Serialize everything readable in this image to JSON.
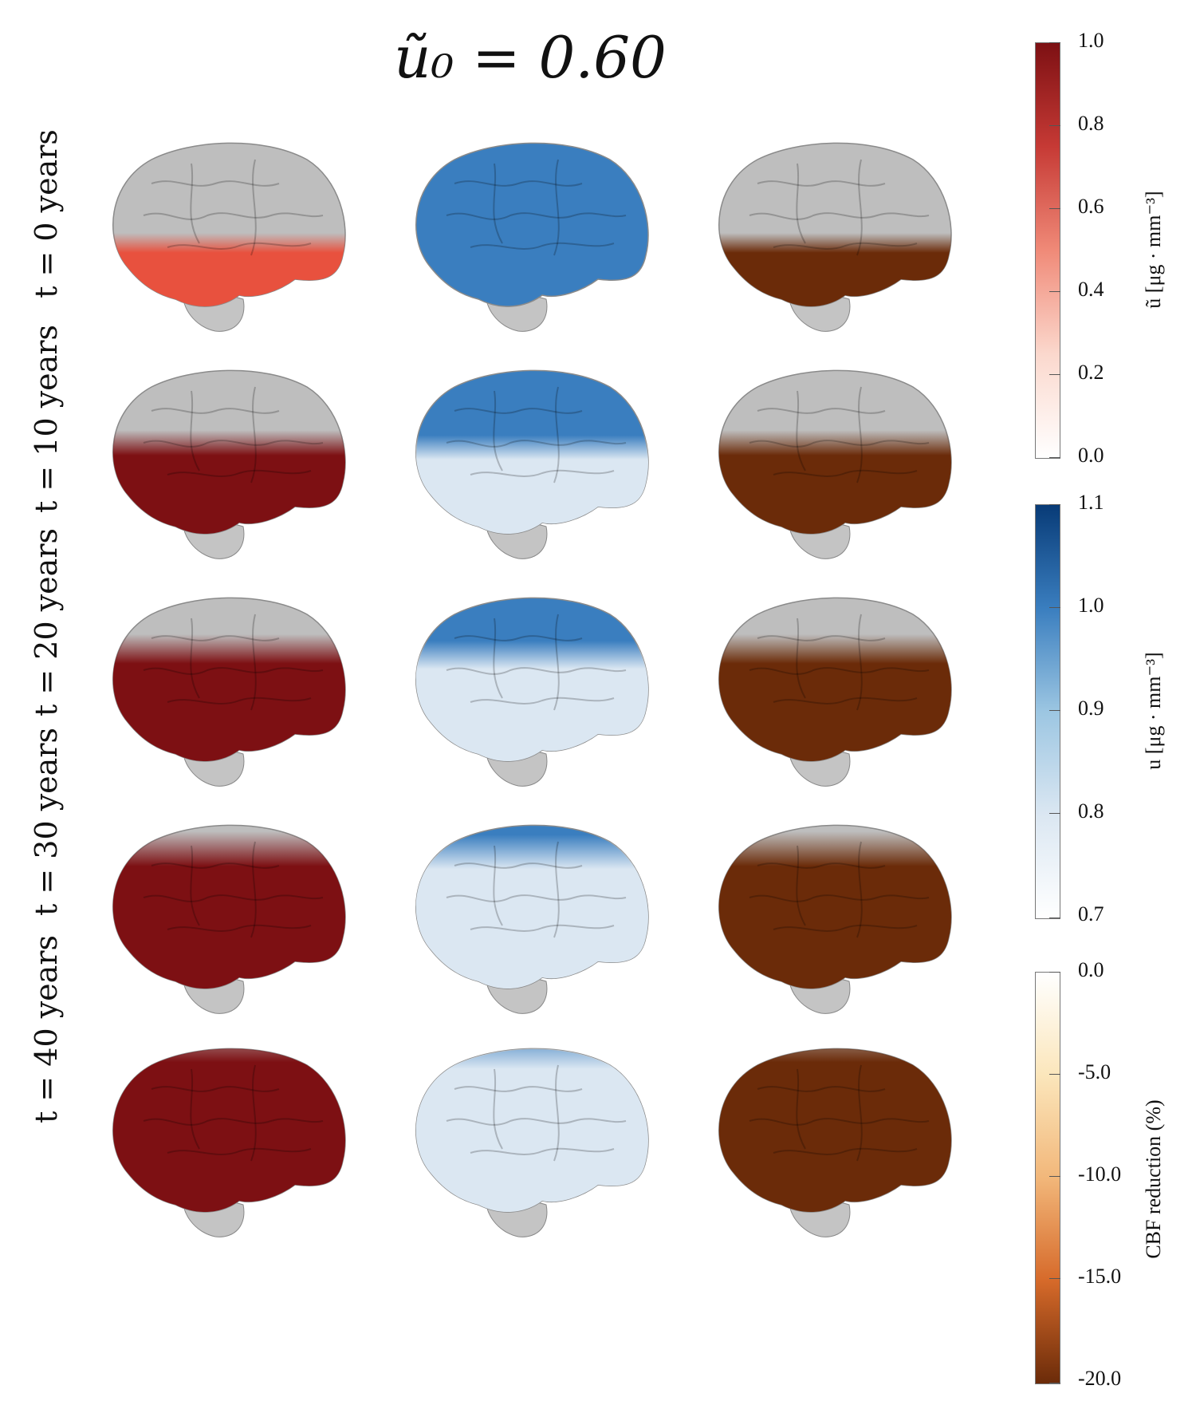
{
  "title": "ũ₀ = 0.60",
  "rows": [
    {
      "label": "t = 0 years"
    },
    {
      "label": "t = 10 years"
    },
    {
      "label": "t = 20 years"
    },
    {
      "label": "t = 30 years"
    },
    {
      "label": "t = 40 years"
    }
  ],
  "columns": [
    "ũ",
    "u",
    "CBF reduction"
  ],
  "colors": {
    "grey_tissue": "#9a9a9a",
    "red_light": "#f5d3c9",
    "red_mid": "#e8513e",
    "red_dark": "#7d1013",
    "blue_light": "#dbe7f2",
    "blue_mid": "#3a7ebf",
    "blue_dark": "#083b77",
    "orange_light": "#fbe2b4",
    "orange_mid": "#e2893c",
    "orange_dark": "#6b2b09"
  },
  "colorbars": [
    {
      "name": "u_tilde",
      "title": "ũ [μg · mm⁻³]",
      "ticks": [
        "1.0",
        "0.8",
        "0.6",
        "0.4",
        "0.2",
        "0.0"
      ],
      "gradient": [
        "#7d1013",
        "#c63a35",
        "#f08a78",
        "#fbd8cd",
        "#ffffff"
      ]
    },
    {
      "name": "u",
      "title": "u [μg · mm⁻³]",
      "ticks": [
        "1.1",
        "1.0",
        "0.9",
        "0.8",
        "0.7"
      ],
      "gradient": [
        "#083b77",
        "#3a7ebf",
        "#9cc6e2",
        "#dbe7f2",
        "#ffffff"
      ]
    },
    {
      "name": "cbf",
      "title": "CBF reduction (%)",
      "ticks": [
        "0.0",
        "-5.0",
        "-10.0",
        "-15.0",
        "-20.0"
      ],
      "gradient": [
        "#ffffff",
        "#fbe6bb",
        "#f2b77a",
        "#d66a2a",
        "#6b2b09"
      ]
    }
  ],
  "panels": [
    [
      {
        "cmap": "red",
        "spread": 0.3,
        "level": 0.6
      },
      {
        "cmap": "blue",
        "spread": 0.0,
        "level": 0.0
      },
      {
        "cmap": "orange",
        "spread": 0.3,
        "level": 1.0
      }
    ],
    [
      {
        "cmap": "red",
        "spread": 0.48,
        "level": 0.95
      },
      {
        "cmap": "blue",
        "spread": 0.45,
        "level": 0.7
      },
      {
        "cmap": "orange",
        "spread": 0.48,
        "level": 1.0
      }
    ],
    [
      {
        "cmap": "red",
        "spread": 0.62,
        "level": 1.0
      },
      {
        "cmap": "blue",
        "spread": 0.58,
        "level": 0.75
      },
      {
        "cmap": "orange",
        "spread": 0.62,
        "level": 1.0
      }
    ],
    [
      {
        "cmap": "red",
        "spread": 0.8,
        "level": 1.0
      },
      {
        "cmap": "blue",
        "spread": 0.78,
        "level": 0.8
      },
      {
        "cmap": "orange",
        "spread": 0.8,
        "level": 1.0
      }
    ],
    [
      {
        "cmap": "red",
        "spread": 1.0,
        "level": 1.0
      },
      {
        "cmap": "blue",
        "spread": 0.95,
        "level": 0.85
      },
      {
        "cmap": "orange",
        "spread": 1.0,
        "level": 1.0
      }
    ]
  ]
}
